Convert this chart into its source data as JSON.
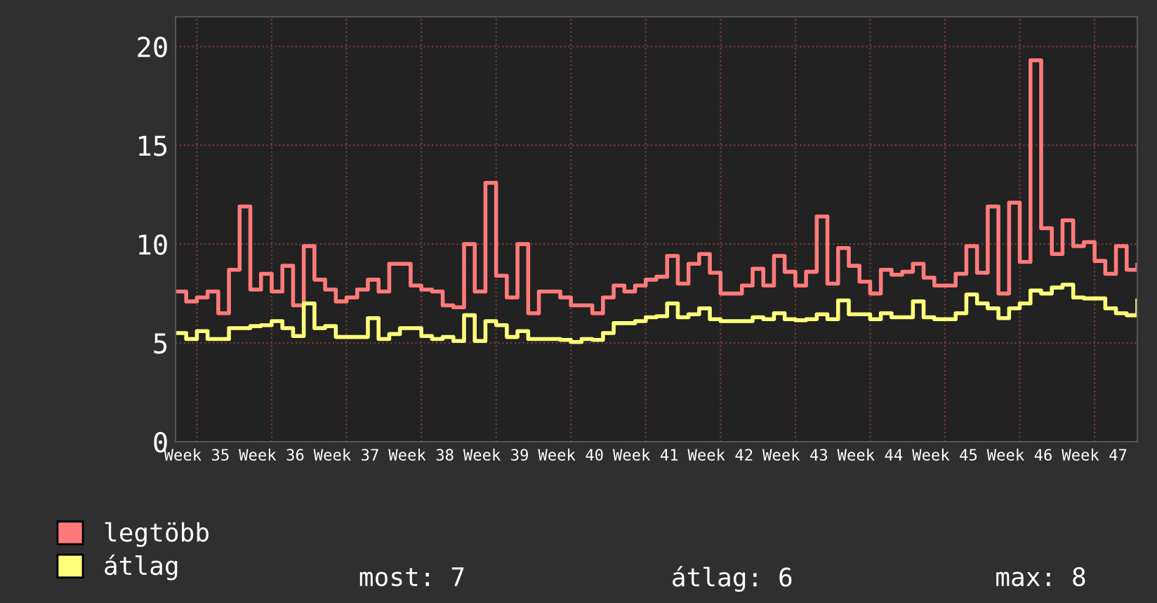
{
  "chart_data": {
    "type": "step",
    "categories": [
      null,
      null,
      "Week 35",
      null,
      null,
      null,
      null,
      null,
      null,
      "Week 36",
      null,
      null,
      null,
      null,
      null,
      null,
      "Week 37",
      null,
      null,
      null,
      null,
      null,
      null,
      "Week 38",
      null,
      null,
      null,
      null,
      null,
      null,
      "Week 39",
      null,
      null,
      null,
      null,
      null,
      null,
      "Week 40",
      null,
      null,
      null,
      null,
      null,
      null,
      "Week 41",
      null,
      null,
      null,
      null,
      null,
      null,
      "Week 42",
      null,
      null,
      null,
      null,
      null,
      null,
      "Week 43",
      null,
      null,
      null,
      null,
      null,
      null,
      "Week 44",
      null,
      null,
      null,
      null,
      null,
      null,
      "Week 45",
      null,
      null,
      null,
      null,
      null,
      null,
      "Week 46",
      null,
      null,
      null,
      null,
      null,
      null,
      "Week 47",
      null,
      null,
      null,
      null
    ],
    "series": [
      {
        "name": "legtöbb",
        "color": "#ff7b7b",
        "values": [
          7.6,
          7.1,
          7.3,
          7.6,
          6.5,
          8.7,
          11.9,
          7.7,
          8.5,
          7.6,
          8.9,
          6.9,
          9.9,
          8.2,
          7.7,
          7.1,
          7.3,
          7.7,
          8.2,
          7.6,
          9.0,
          9.0,
          7.9,
          7.7,
          7.6,
          6.9,
          6.8,
          10.0,
          7.6,
          13.1,
          8.4,
          7.3,
          10.0,
          6.5,
          7.6,
          7.6,
          7.3,
          6.9,
          6.9,
          6.5,
          7.3,
          7.9,
          7.6,
          7.9,
          8.2,
          8.35,
          9.4,
          8.0,
          9.0,
          9.5,
          8.55,
          7.5,
          7.5,
          7.9,
          8.75,
          7.9,
          9.4,
          8.6,
          7.9,
          8.6,
          11.4,
          8.0,
          9.8,
          8.9,
          8.1,
          7.5,
          8.7,
          8.45,
          8.6,
          9.0,
          8.3,
          7.9,
          7.9,
          8.5,
          9.9,
          8.55,
          11.9,
          7.5,
          12.1,
          9.1,
          19.3,
          10.8,
          9.5,
          11.2,
          9.9,
          10.1,
          9.15,
          8.5,
          9.9,
          8.7,
          8.95
        ]
      },
      {
        "name": "átlag",
        "color": "#ffff7b",
        "values": [
          5.5,
          5.2,
          5.6,
          5.2,
          5.2,
          5.75,
          5.75,
          5.85,
          5.9,
          6.1,
          5.75,
          5.35,
          7.0,
          5.75,
          5.85,
          5.3,
          5.3,
          5.3,
          6.25,
          5.2,
          5.45,
          5.75,
          5.75,
          5.35,
          5.2,
          5.3,
          5.1,
          6.4,
          5.1,
          6.1,
          5.9,
          5.3,
          5.6,
          5.2,
          5.2,
          5.2,
          5.15,
          5.05,
          5.2,
          5.15,
          5.5,
          6.0,
          6.0,
          6.1,
          6.3,
          6.35,
          7.0,
          6.3,
          6.45,
          6.75,
          6.2,
          6.1,
          6.1,
          6.1,
          6.3,
          6.2,
          6.5,
          6.2,
          6.15,
          6.2,
          6.45,
          6.2,
          7.15,
          6.45,
          6.45,
          6.2,
          6.5,
          6.3,
          6.3,
          7.1,
          6.3,
          6.2,
          6.2,
          6.5,
          7.45,
          7.0,
          6.75,
          6.25,
          6.75,
          7.0,
          7.65,
          7.5,
          7.8,
          7.95,
          7.3,
          7.25,
          7.25,
          6.75,
          6.5,
          6.4,
          7.15
        ]
      }
    ],
    "ylim": [
      0,
      21.5
    ],
    "yticks": [
      0,
      5,
      10,
      15,
      20
    ],
    "grid": true,
    "legend": "bottom left",
    "annotations": [
      "most: 7",
      "átlag: 6",
      "max: 8"
    ]
  }
}
